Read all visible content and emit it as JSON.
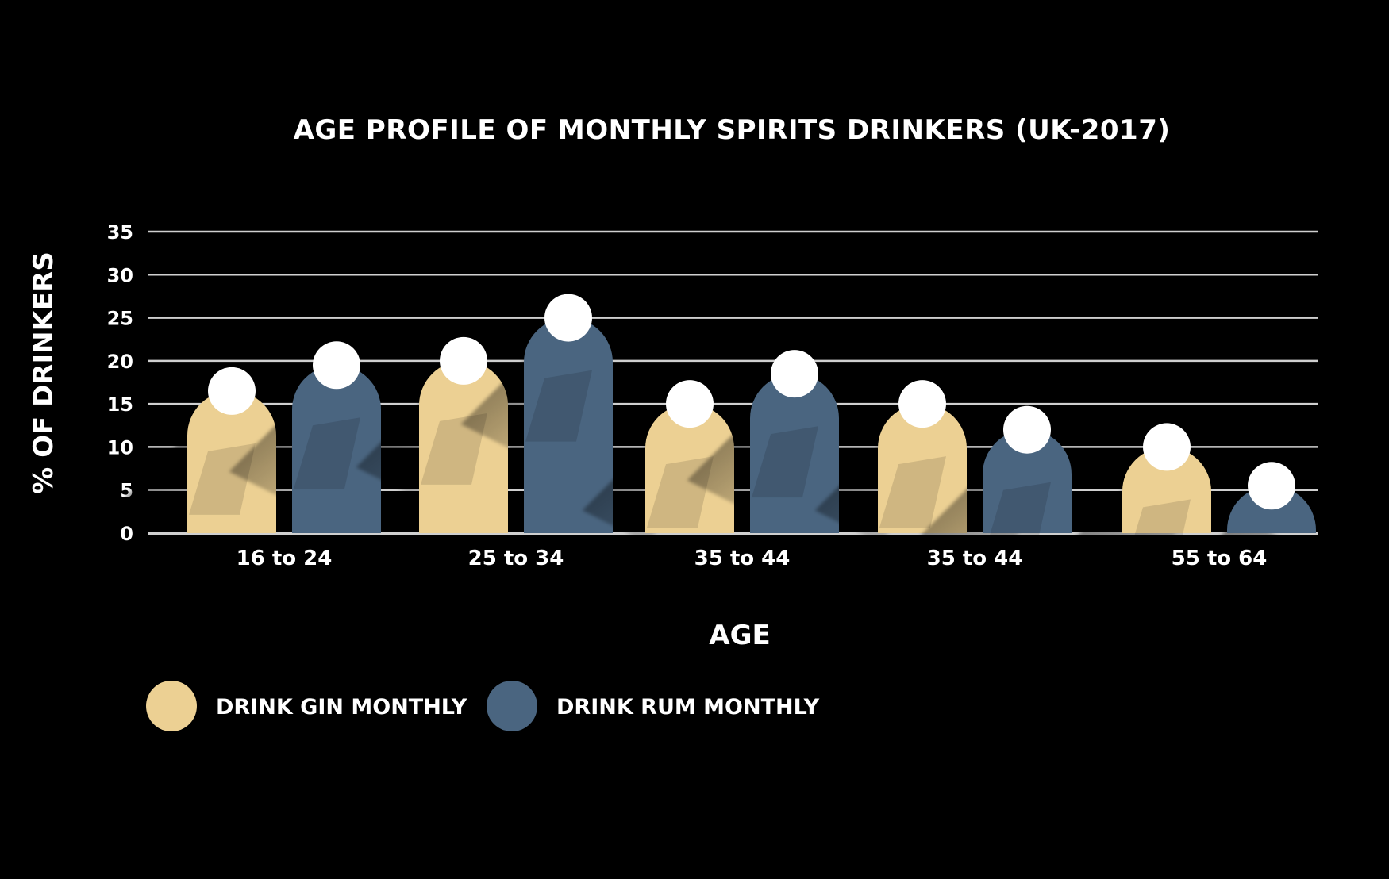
{
  "chart_data": {
    "type": "bar",
    "title": "AGE PROFILE OF MONTHLY SPIRITS DRINKERS (UK-2017)",
    "xlabel": "AGE",
    "ylabel": "% OF DRINKERS",
    "categories": [
      "16 to 24",
      "25 to 34",
      "35 to 44",
      "35 to 44",
      "55 to 64"
    ],
    "series": [
      {
        "name": "DRINK GIN MONTHLY",
        "color": "#ecd093",
        "values": [
          16.5,
          20,
          15,
          15,
          10
        ]
      },
      {
        "name": "DRINK RUM MONTHLY",
        "color": "#4a6580",
        "values": [
          19.5,
          25,
          18.5,
          12,
          5.5
        ]
      }
    ],
    "ylim": [
      0,
      35
    ],
    "yticks": [
      0,
      5,
      10,
      15,
      20,
      25,
      30,
      35
    ],
    "grid": true,
    "legend_position": "bottom-left",
    "background": "#000000",
    "grid_color": "#cfcfcf",
    "text_color": "#ffffff"
  }
}
